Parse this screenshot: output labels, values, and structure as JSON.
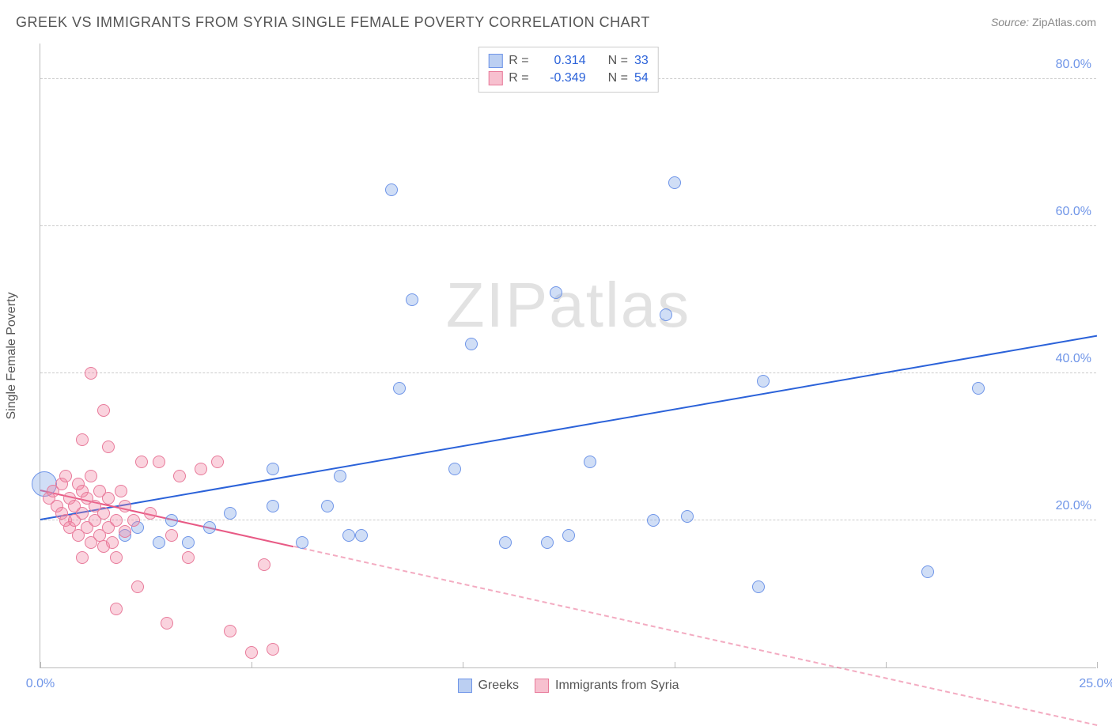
{
  "title": "GREEK VS IMMIGRANTS FROM SYRIA SINGLE FEMALE POVERTY CORRELATION CHART",
  "source_label": "Source:",
  "source_name": "ZipAtlas.com",
  "ylabel": "Single Female Poverty",
  "watermark": {
    "bold": "ZIP",
    "rest": "atlas"
  },
  "chart": {
    "type": "scatter",
    "xlim": [
      0,
      25
    ],
    "ylim": [
      0,
      85
    ],
    "y_ticks": [
      {
        "v": 20,
        "label": "20.0%"
      },
      {
        "v": 40,
        "label": "40.0%"
      },
      {
        "v": 60,
        "label": "60.0%"
      },
      {
        "v": 80,
        "label": "80.0%"
      }
    ],
    "x_ticks": [
      {
        "v": 0,
        "label": "0.0%"
      },
      {
        "v": 5,
        "label": ""
      },
      {
        "v": 10,
        "label": ""
      },
      {
        "v": 15,
        "label": ""
      },
      {
        "v": 20,
        "label": ""
      },
      {
        "v": 25,
        "label": "25.0%"
      }
    ],
    "tick_color": "#6f95e8",
    "grid_color": "#cccccc",
    "border_color": "#bbbbbb",
    "series": [
      {
        "name": "Greeks",
        "color_fill": "rgba(120,160,230,0.35)",
        "color_stroke": "#6f95e8",
        "marker": "circle",
        "base_size": 16,
        "regression": {
          "y0": 20,
          "y25": 45,
          "solid_to_x": 25,
          "line_color": "#2b62d9"
        },
        "legend_R": "0.314",
        "legend_N": "33",
        "points": [
          {
            "x": 0.1,
            "y": 25,
            "r": 32
          },
          {
            "x": 2.0,
            "y": 18
          },
          {
            "x": 2.3,
            "y": 19
          },
          {
            "x": 2.8,
            "y": 17
          },
          {
            "x": 3.1,
            "y": 20
          },
          {
            "x": 3.5,
            "y": 17
          },
          {
            "x": 4.0,
            "y": 19
          },
          {
            "x": 4.5,
            "y": 21
          },
          {
            "x": 5.5,
            "y": 27
          },
          {
            "x": 5.5,
            "y": 22
          },
          {
            "x": 6.2,
            "y": 17
          },
          {
            "x": 6.8,
            "y": 22
          },
          {
            "x": 7.1,
            "y": 26
          },
          {
            "x": 7.3,
            "y": 18
          },
          {
            "x": 7.6,
            "y": 18
          },
          {
            "x": 8.5,
            "y": 38
          },
          {
            "x": 8.3,
            "y": 65
          },
          {
            "x": 8.8,
            "y": 50
          },
          {
            "x": 9.8,
            "y": 27
          },
          {
            "x": 10.2,
            "y": 44
          },
          {
            "x": 11.0,
            "y": 17
          },
          {
            "x": 12.2,
            "y": 51
          },
          {
            "x": 12.5,
            "y": 18
          },
          {
            "x": 13.0,
            "y": 28
          },
          {
            "x": 14.5,
            "y": 20
          },
          {
            "x": 15.0,
            "y": 66
          },
          {
            "x": 15.3,
            "y": 20.5
          },
          {
            "x": 17.0,
            "y": 11
          },
          {
            "x": 17.1,
            "y": 39
          },
          {
            "x": 21.0,
            "y": 13
          },
          {
            "x": 22.2,
            "y": 38
          },
          {
            "x": 14.8,
            "y": 48
          },
          {
            "x": 12.0,
            "y": 17
          }
        ]
      },
      {
        "name": "Immigrants from Syria",
        "color_fill": "rgba(240,130,160,0.35)",
        "color_stroke": "#e87a9a",
        "marker": "circle",
        "base_size": 16,
        "regression": {
          "y0": 24,
          "y25": -8,
          "solid_to_x": 6,
          "line_color": "#e85a85"
        },
        "legend_R": "-0.349",
        "legend_N": "54",
        "points": [
          {
            "x": 0.2,
            "y": 23
          },
          {
            "x": 0.3,
            "y": 24
          },
          {
            "x": 0.4,
            "y": 22
          },
          {
            "x": 0.5,
            "y": 21
          },
          {
            "x": 0.5,
            "y": 25
          },
          {
            "x": 0.6,
            "y": 20
          },
          {
            "x": 0.6,
            "y": 26
          },
          {
            "x": 0.7,
            "y": 23
          },
          {
            "x": 0.7,
            "y": 19
          },
          {
            "x": 0.8,
            "y": 22
          },
          {
            "x": 0.8,
            "y": 20
          },
          {
            "x": 0.9,
            "y": 25
          },
          {
            "x": 0.9,
            "y": 18
          },
          {
            "x": 1.0,
            "y": 21
          },
          {
            "x": 1.0,
            "y": 24
          },
          {
            "x": 1.1,
            "y": 19
          },
          {
            "x": 1.1,
            "y": 23
          },
          {
            "x": 1.2,
            "y": 17
          },
          {
            "x": 1.2,
            "y": 26
          },
          {
            "x": 1.3,
            "y": 22
          },
          {
            "x": 1.3,
            "y": 20
          },
          {
            "x": 1.4,
            "y": 24
          },
          {
            "x": 1.4,
            "y": 18
          },
          {
            "x": 1.5,
            "y": 21
          },
          {
            "x": 1.5,
            "y": 16.5
          },
          {
            "x": 1.6,
            "y": 23
          },
          {
            "x": 1.6,
            "y": 19
          },
          {
            "x": 1.7,
            "y": 17
          },
          {
            "x": 1.8,
            "y": 20
          },
          {
            "x": 1.8,
            "y": 15
          },
          {
            "x": 1.0,
            "y": 31
          },
          {
            "x": 1.2,
            "y": 40
          },
          {
            "x": 1.5,
            "y": 35
          },
          {
            "x": 1.6,
            "y": 30
          },
          {
            "x": 1.9,
            "y": 24
          },
          {
            "x": 2.0,
            "y": 22
          },
          {
            "x": 2.0,
            "y": 18.5
          },
          {
            "x": 2.2,
            "y": 20
          },
          {
            "x": 2.3,
            "y": 11
          },
          {
            "x": 2.4,
            "y": 28
          },
          {
            "x": 2.6,
            "y": 21
          },
          {
            "x": 2.8,
            "y": 28
          },
          {
            "x": 3.0,
            "y": 6
          },
          {
            "x": 3.1,
            "y": 18
          },
          {
            "x": 3.3,
            "y": 26
          },
          {
            "x": 3.5,
            "y": 15
          },
          {
            "x": 3.8,
            "y": 27
          },
          {
            "x": 4.2,
            "y": 28
          },
          {
            "x": 4.5,
            "y": 5
          },
          {
            "x": 5.0,
            "y": 2
          },
          {
            "x": 5.3,
            "y": 14
          },
          {
            "x": 5.5,
            "y": 2.5
          },
          {
            "x": 1.8,
            "y": 8
          },
          {
            "x": 1.0,
            "y": 15
          }
        ]
      }
    ],
    "legend_top_labels": {
      "R_label": "R =",
      "N_label": "N ="
    },
    "legend_bottom": [
      {
        "swatch_fill": "rgba(120,160,230,0.5)",
        "swatch_stroke": "#6f95e8",
        "label": "Greeks"
      },
      {
        "swatch_fill": "rgba(240,130,160,0.5)",
        "swatch_stroke": "#e87a9a",
        "label": "Immigrants from Syria"
      }
    ]
  }
}
